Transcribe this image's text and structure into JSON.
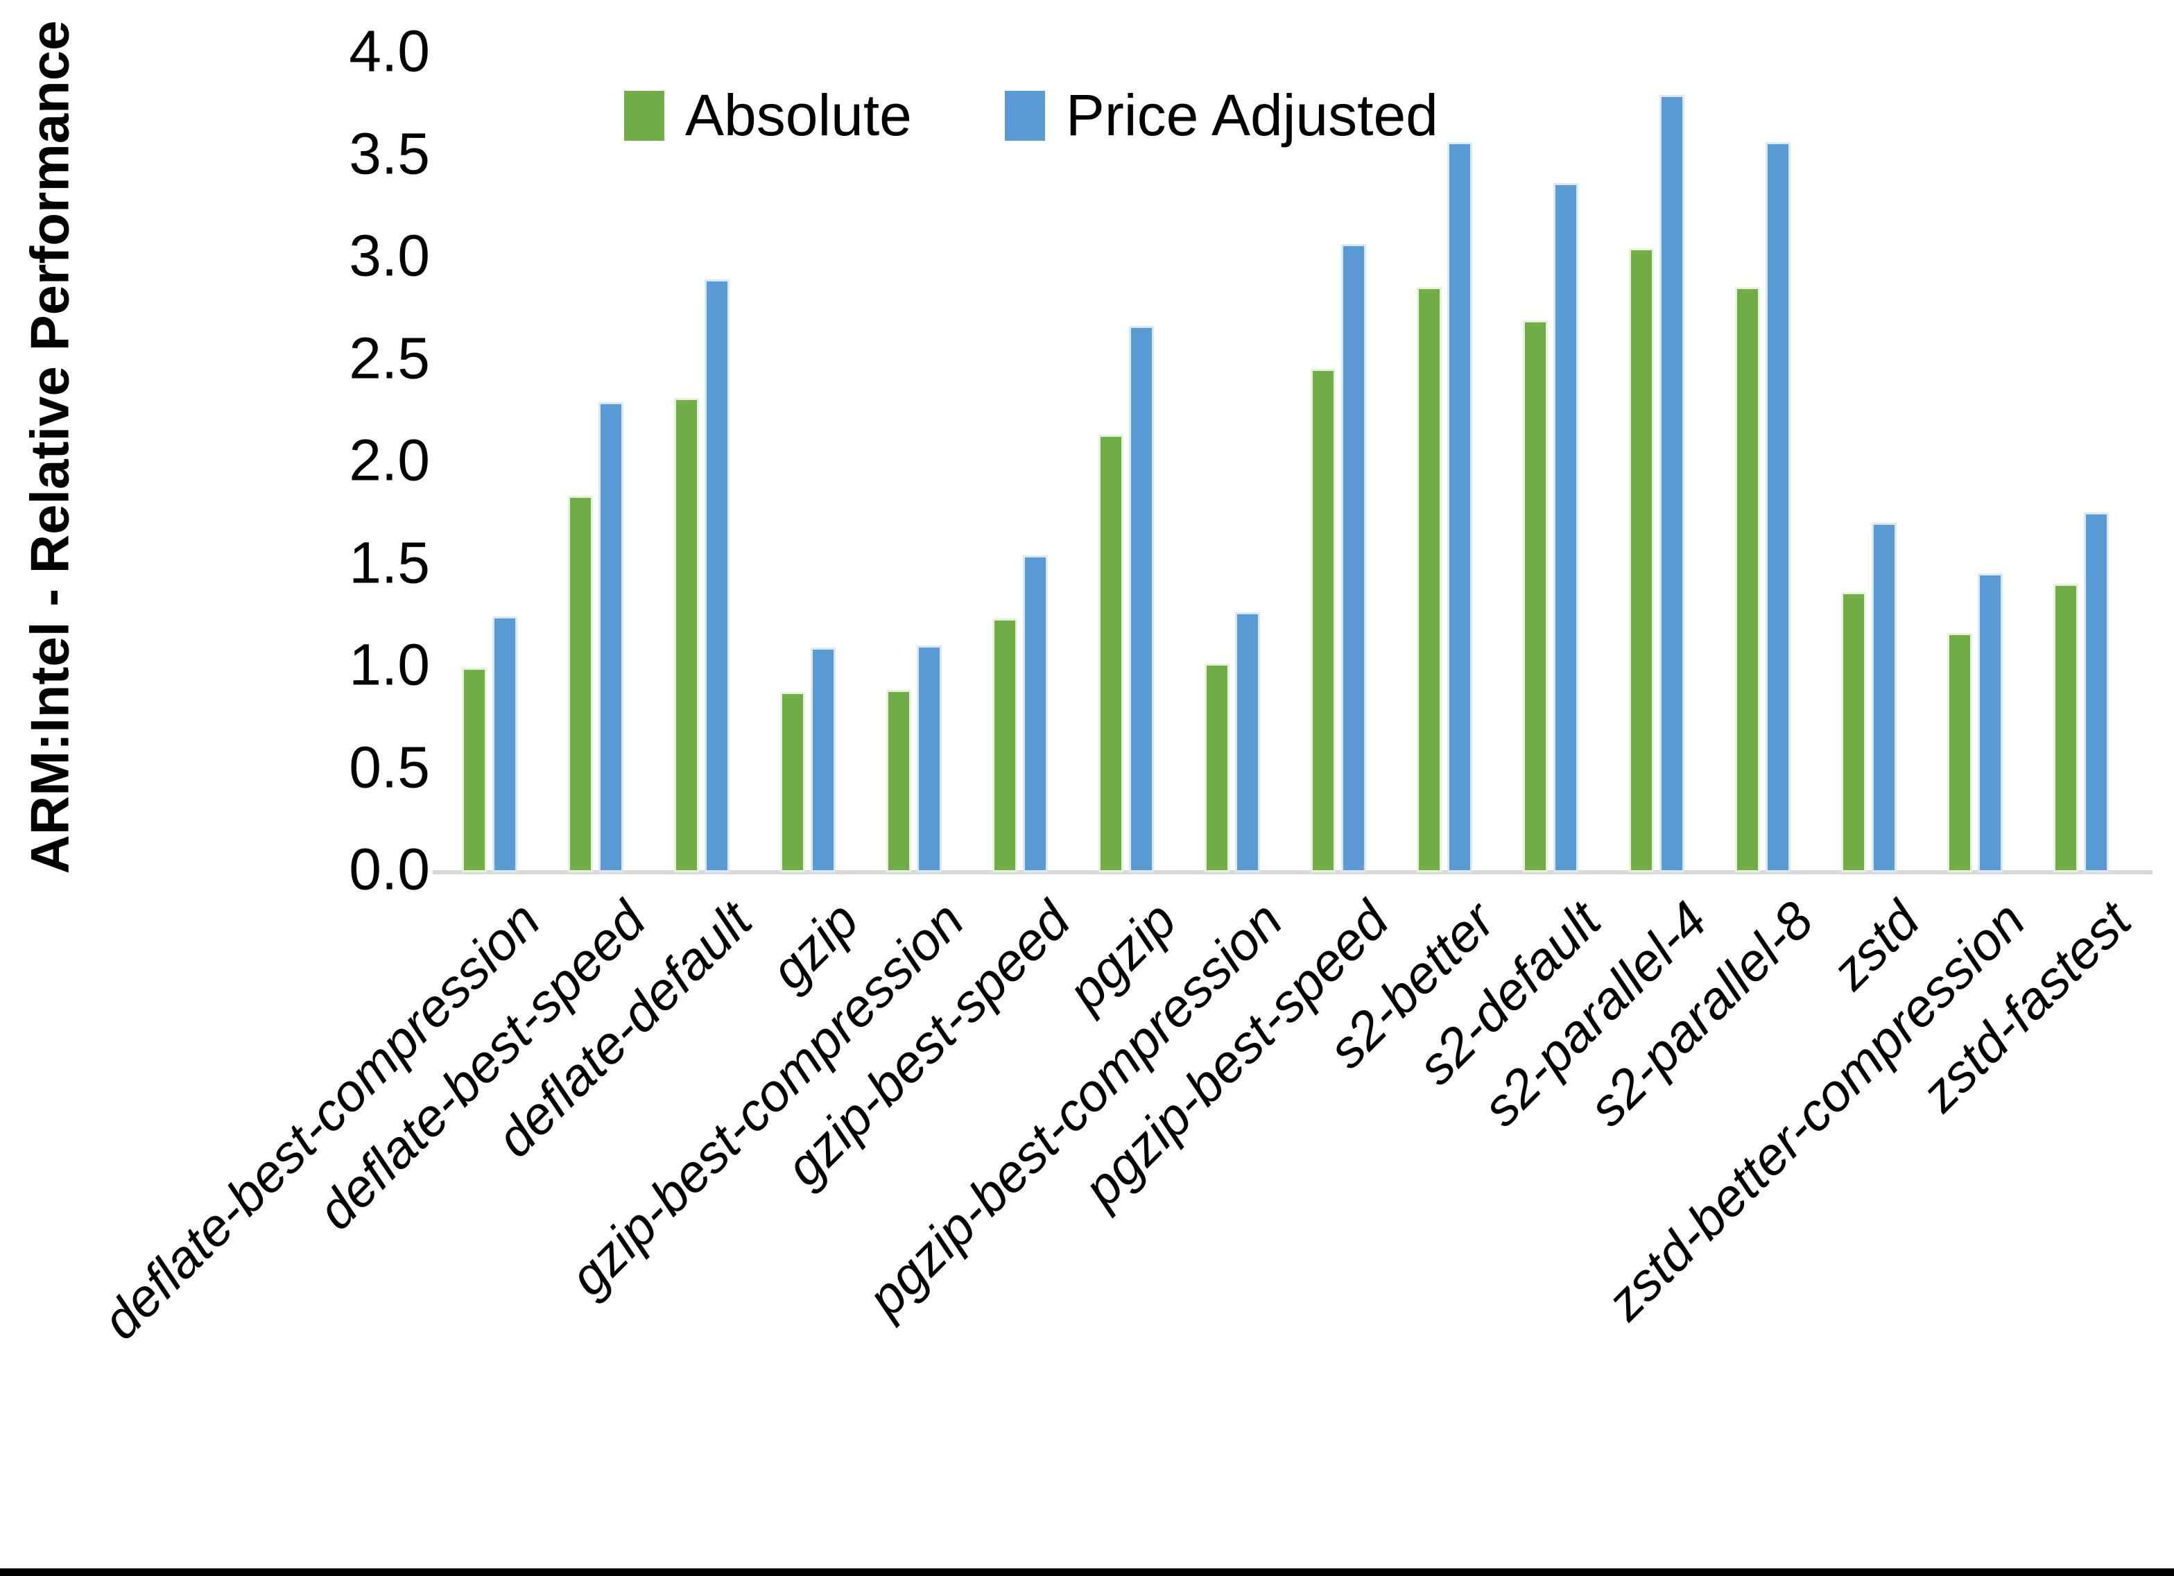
{
  "figure": {
    "ylabel": "ARM:Intel - Relative Performance"
  },
  "chart_data": {
    "type": "bar",
    "title": "",
    "xlabel": "",
    "ylabel": "ARM:Intel - Relative Performance",
    "categories": [
      "deflate-best-compression",
      "deflate-best-speed",
      "deflate-default",
      "gzip",
      "gzip-best-compression",
      "gzip-best-speed",
      "pgzip",
      "pgzip-best-compression",
      "pgzip-best-speed",
      "s2-better",
      "s2-default",
      "s2-parallel-4",
      "s2-parallel-8",
      "zstd",
      "zstd-better-compression",
      "zstd-fastest"
    ],
    "series": [
      {
        "name": "Absolute",
        "color": "#70AD47",
        "values": [
          1.0,
          1.84,
          2.32,
          0.88,
          0.89,
          1.24,
          2.14,
          1.02,
          2.46,
          2.86,
          2.7,
          3.05,
          2.86,
          1.37,
          1.17,
          1.41
        ]
      },
      {
        "name": "Price Adjusted",
        "color": "#5B9BD5",
        "values": [
          1.25,
          2.3,
          2.9,
          1.1,
          1.11,
          1.55,
          2.67,
          1.27,
          3.07,
          3.57,
          3.37,
          3.8,
          3.57,
          1.71,
          1.46,
          1.76
        ]
      }
    ],
    "ylim": [
      0.0,
      4.0
    ],
    "ytick_step": 0.5,
    "yticks": [
      "0.0",
      "0.5",
      "1.0",
      "1.5",
      "2.0",
      "2.5",
      "3.0",
      "3.5",
      "4.0"
    ],
    "grid": false,
    "legend_position": "top-center",
    "xlabel_rotation_deg": 45,
    "axis_line_color": "#D9D9D9"
  }
}
